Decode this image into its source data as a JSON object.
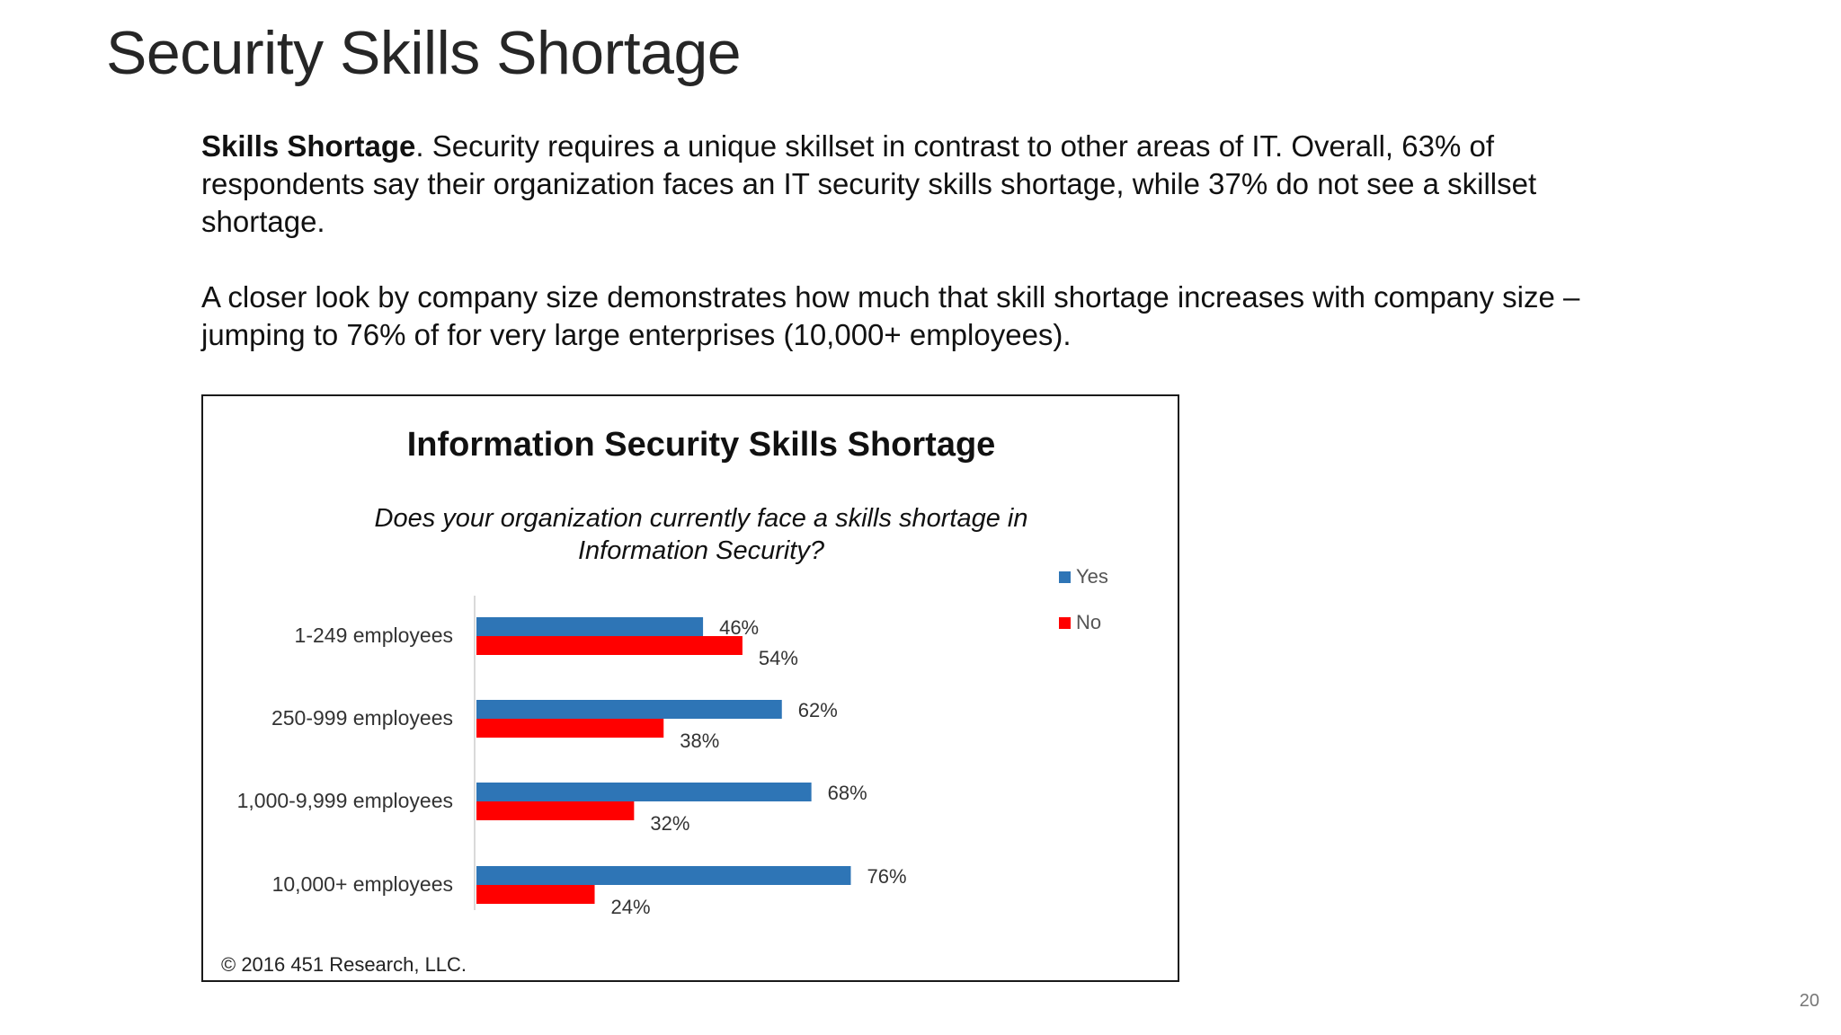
{
  "slide": {
    "title": "Security Skills Shortage",
    "page_number": "20"
  },
  "body": {
    "paragraph1_bold": "Skills Shortage",
    "paragraph1_rest": ". Security requires a unique skillset in contrast to other areas of IT. Overall, 63% of respondents say their organization faces an IT security skills shortage, while 37% do not see a skillset shortage.",
    "paragraph2": "A closer look by company size demonstrates how much that skill shortage increases with company size – jumping to 76% of for very large enterprises (10,000+ employees)."
  },
  "chart_data": {
    "type": "bar",
    "orientation": "horizontal",
    "title": "Information Security Skills Shortage",
    "subtitle_line1": "Does your organization currently face a skills shortage in",
    "subtitle_line2": "Information Security?",
    "categories": [
      "1-249 employees",
      "250-999 employees",
      "1,000-9,999 employees",
      "10,000+ employees"
    ],
    "series": [
      {
        "name": "Yes",
        "color": "#2e75b6",
        "values": [
          46,
          62,
          68,
          76
        ],
        "labels": [
          "46%",
          "62%",
          "68%",
          "76%"
        ]
      },
      {
        "name": "No",
        "color": "#ff0000",
        "values": [
          54,
          38,
          32,
          24
        ],
        "labels": [
          "54%",
          "38%",
          "32%",
          "24%"
        ]
      }
    ],
    "legend_placement": "top-right",
    "grid": false,
    "xlim": [
      0,
      100
    ],
    "source": "© 2016 451 Research, LLC."
  }
}
